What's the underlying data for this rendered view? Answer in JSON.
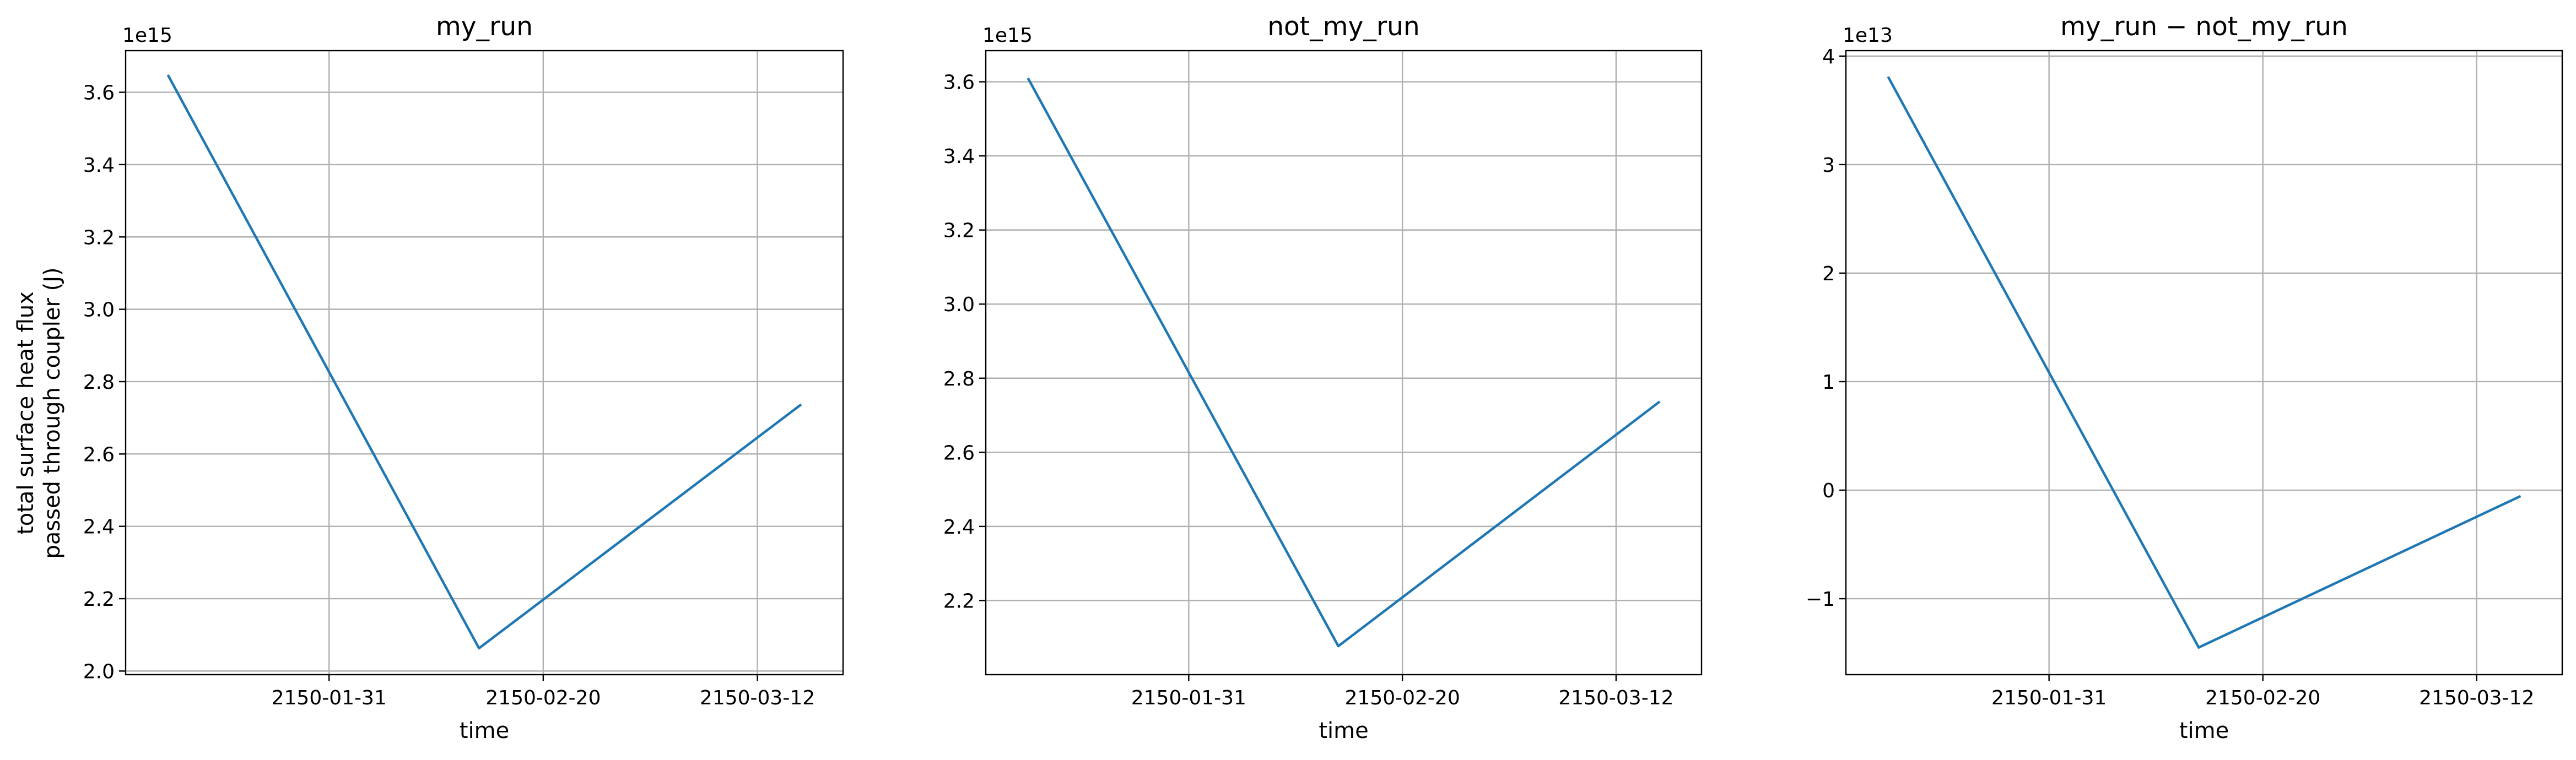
{
  "figure": {
    "ylabel_line1": "total surface heat flux",
    "ylabel_line2": "passed through coupler (J)"
  },
  "colors": {
    "series": "#1f77b4",
    "grid": "#b0b0b0"
  },
  "chart_data": [
    {
      "type": "line",
      "title": "my_run",
      "xlabel": "time",
      "ylabel": "total surface heat flux passed through coupler (J)",
      "y_offset_label": "1e15",
      "grid": true,
      "x": [
        "2150-01-16",
        "2150-02-14",
        "2150-03-16"
      ],
      "values": [
        3.645,
        2.063,
        2.735
      ],
      "xlim": [
        "2150-01-12",
        "2150-03-20"
      ],
      "ylim": [
        1.99,
        3.715
      ],
      "x_ticks": [
        "2150-01-31",
        "2150-02-20",
        "2150-03-12"
      ],
      "y_ticks": [
        2.0,
        2.2,
        2.4,
        2.6,
        2.8,
        3.0,
        3.2,
        3.4,
        3.6
      ],
      "y_tick_labels": [
        "2.0",
        "2.2",
        "2.4",
        "2.6",
        "2.8",
        "3.0",
        "3.2",
        "3.4",
        "3.6"
      ]
    },
    {
      "type": "line",
      "title": "not_my_run",
      "xlabel": "time",
      "ylabel": "",
      "y_offset_label": "1e15",
      "grid": true,
      "x": [
        "2150-01-16",
        "2150-02-14",
        "2150-03-16"
      ],
      "values": [
        3.607,
        2.077,
        2.735
      ],
      "xlim": [
        "2150-01-12",
        "2150-03-20"
      ],
      "ylim": [
        2.0,
        3.684
      ],
      "x_ticks": [
        "2150-01-31",
        "2150-02-20",
        "2150-03-12"
      ],
      "y_ticks": [
        2.2,
        2.4,
        2.6,
        2.8,
        3.0,
        3.2,
        3.4,
        3.6
      ],
      "y_tick_labels": [
        "2.2",
        "2.4",
        "2.6",
        "2.8",
        "3.0",
        "3.2",
        "3.4",
        "3.6"
      ]
    },
    {
      "type": "line",
      "title": "my_run − not_my_run",
      "xlabel": "time",
      "ylabel": "",
      "y_offset_label": "1e13",
      "grid": true,
      "x": [
        "2150-01-16",
        "2150-02-14",
        "2150-03-16"
      ],
      "values": [
        3.8,
        -1.45,
        -0.06
      ],
      "xlim": [
        "2150-01-12",
        "2150-03-20"
      ],
      "ylim": [
        -1.7,
        4.05
      ],
      "x_ticks": [
        "2150-01-31",
        "2150-02-20",
        "2150-03-12"
      ],
      "y_ticks": [
        -1,
        0,
        1,
        2,
        3,
        4
      ],
      "y_tick_labels": [
        "−1",
        "0",
        "1",
        "2",
        "3",
        "4"
      ]
    }
  ]
}
